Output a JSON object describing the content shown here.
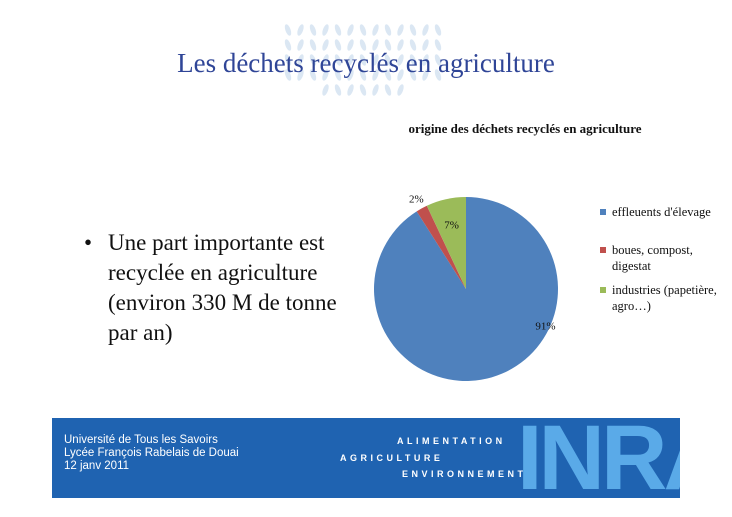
{
  "slide": {
    "title": "Les déchets recyclés en agriculture",
    "bullet": "Une part importante est recyclée en agriculture (environ 330 M de tonne par an)"
  },
  "chart_data": {
    "type": "pie",
    "title": "origine des déchets recyclés en agriculture",
    "categories": [
      "effleuents d'élevage",
      "boues, compost, digestat",
      "industries (papetière, agro…)"
    ],
    "values": [
      91,
      2,
      7
    ],
    "labels": [
      "91%",
      "2%",
      "7%"
    ],
    "colors": [
      "#4f81bd",
      "#c0504d",
      "#9bbb59"
    ],
    "legend": "right"
  },
  "footer": {
    "lines": [
      "Université de Tous les Savoirs",
      "Lycée François Rabelais de Douai",
      "12 janv 2011"
    ],
    "claim": [
      "ALIMENTATION",
      "AGRICULTURE",
      "ENVIRONNEMENT"
    ],
    "logo": "INRA",
    "background": "#1f63b1"
  }
}
